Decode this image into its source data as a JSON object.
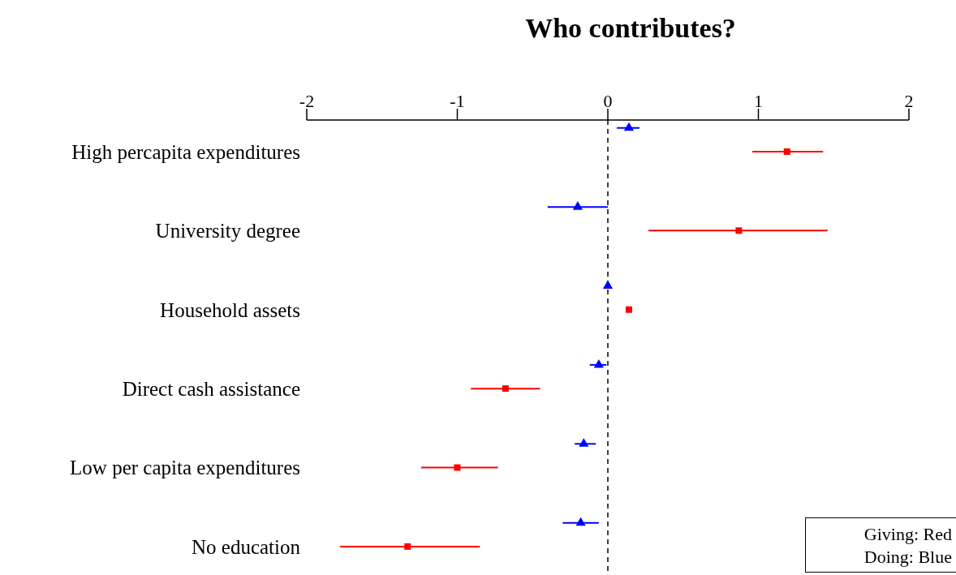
{
  "chart_data": {
    "type": "scatter",
    "title": "Who contributes?",
    "orientation": "horizontal",
    "categories": [
      "High percapita expenditures",
      "University degree",
      "Household assets",
      "Direct cash assistance",
      "Low per capita expenditures",
      "No education"
    ],
    "series": [
      {
        "color": "#0000ff",
        "marker": "triangle",
        "values": [
          0.14,
          -0.2,
          0.0,
          -0.06,
          -0.16,
          -0.18
        ],
        "errors": [
          [
            0.06,
            0.21
          ],
          [
            -0.4,
            0.0
          ],
          null,
          [
            -0.12,
            -0.01
          ],
          [
            -0.22,
            -0.08
          ],
          [
            -0.3,
            -0.06
          ]
        ]
      },
      {
        "color": "#ff0000",
        "marker": "square",
        "values": [
          1.19,
          0.87,
          0.14,
          -0.68,
          -1.0,
          -1.33
        ],
        "errors": [
          [
            0.96,
            1.43
          ],
          [
            0.27,
            1.46
          ],
          null,
          [
            -0.91,
            -0.45
          ],
          [
            -1.24,
            -0.73
          ],
          [
            -1.78,
            -0.85
          ]
        ]
      }
    ],
    "xlim": [
      -2,
      2
    ],
    "xticks": [
      -2,
      -1,
      0,
      1,
      2
    ],
    "ref_lines": [
      {
        "axis": "x",
        "value": 0,
        "line_style": "dashed",
        "color": "#000000"
      }
    ],
    "annotations": [
      "Giving: Red",
      "Doing: Blue"
    ],
    "tick_labels": "x"
  }
}
